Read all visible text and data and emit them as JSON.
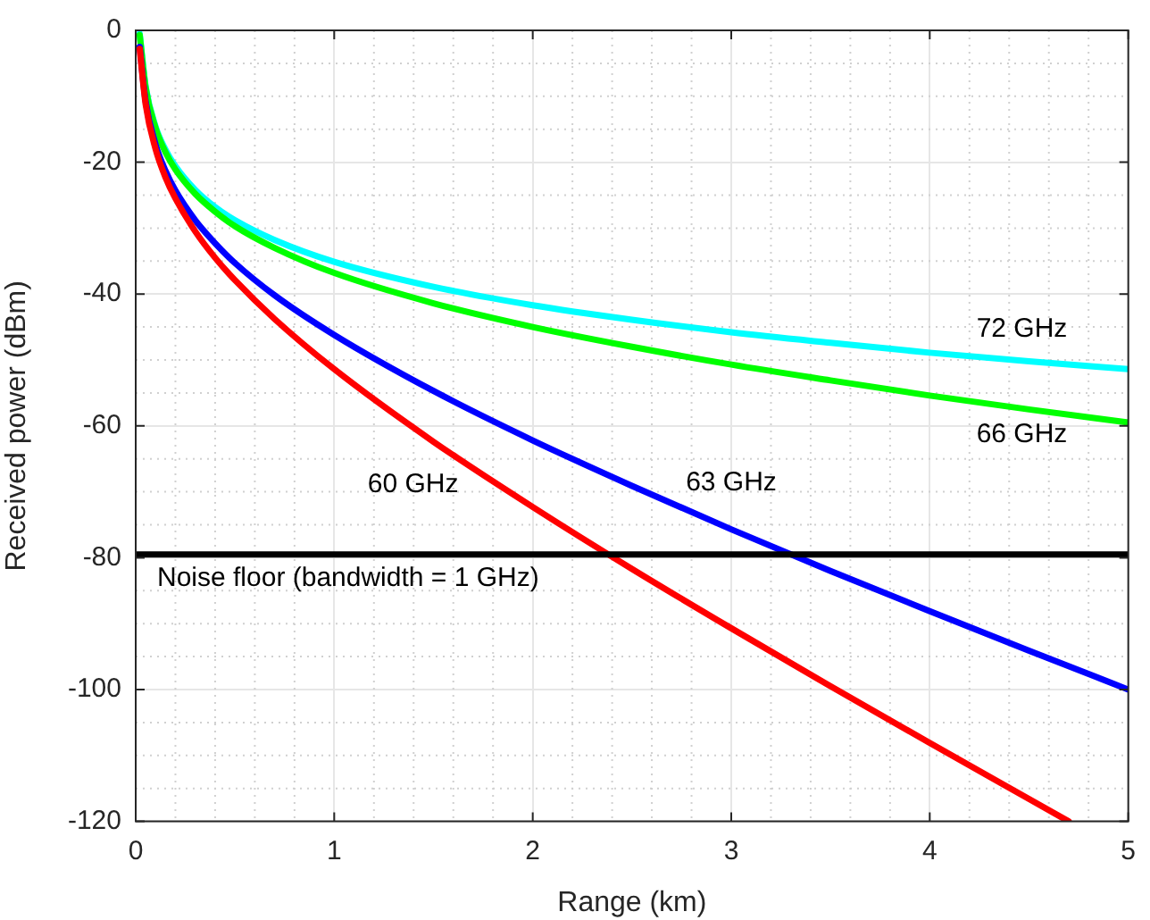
{
  "chart_data": {
    "type": "line",
    "xlabel": "Range (km)",
    "ylabel": "Received power (dBm)",
    "x": [
      0.02,
      0.05,
      0.1,
      0.15,
      0.2,
      0.3,
      0.4,
      0.5,
      0.7,
      1,
      1.5,
      2,
      2.5,
      3,
      3.5,
      4,
      4.5,
      5
    ],
    "series": [
      {
        "name": "60 GHz",
        "color": "#ff0000",
        "x": [
          0.02,
          0.05,
          0.1,
          0.15,
          0.2,
          0.3,
          0.4,
          0.5,
          0.7,
          1,
          1.5,
          2,
          2.5,
          3,
          3.5,
          4,
          4.5,
          4.7
        ],
        "values": [
          -2.8,
          -11.2,
          -18.0,
          -22.3,
          -25.5,
          -30.5,
          -34.5,
          -37.9,
          -43.8,
          -51.4,
          -62.4,
          -72.3,
          -81.7,
          -90.7,
          -99.5,
          -108.1,
          -116.6,
          -120.0
        ]
      },
      {
        "name": "63 GHz",
        "color": "#0000ff",
        "values": [
          -2.5,
          -10.8,
          -17.3,
          -21.3,
          -24.3,
          -28.8,
          -32.3,
          -35.3,
          -40.2,
          -46.2,
          -54.7,
          -62.2,
          -69.1,
          -75.7,
          -82.0,
          -88.1,
          -94.1,
          -100.0
        ]
      },
      {
        "name": "66 GHz",
        "color": "#00ff00",
        "values": [
          -0.7,
          -8.7,
          -14.8,
          -18.5,
          -21.1,
          -24.8,
          -27.5,
          -29.7,
          -33.0,
          -36.8,
          -41.4,
          -45.0,
          -48.0,
          -50.7,
          -53.1,
          -55.4,
          -57.5,
          -59.5
        ]
      },
      {
        "name": "72 GHz",
        "color": "#00ffff",
        "values": [
          -0.5,
          -8.5,
          -14.6,
          -18.1,
          -20.6,
          -24.2,
          -26.8,
          -28.8,
          -31.8,
          -35.1,
          -38.9,
          -41.7,
          -43.9,
          -45.8,
          -47.4,
          -48.9,
          -50.2,
          -51.4
        ]
      }
    ],
    "xlim": [
      0,
      5
    ],
    "xticks": [
      0,
      1,
      2,
      3,
      4,
      5
    ],
    "ylim": [
      -120,
      0
    ],
    "yticks": [
      -120,
      -100,
      -80,
      -60,
      -40,
      -20,
      0
    ],
    "ref_lines": [
      {
        "axis": "y",
        "value": -79.5,
        "color": "#000000"
      }
    ],
    "annotations": [
      {
        "text": "Noise floor (bandwidth = 1 GHz)",
        "y": -79.5
      }
    ],
    "grid": true,
    "legend": false,
    "marker": "none",
    "line_style": "solid"
  }
}
